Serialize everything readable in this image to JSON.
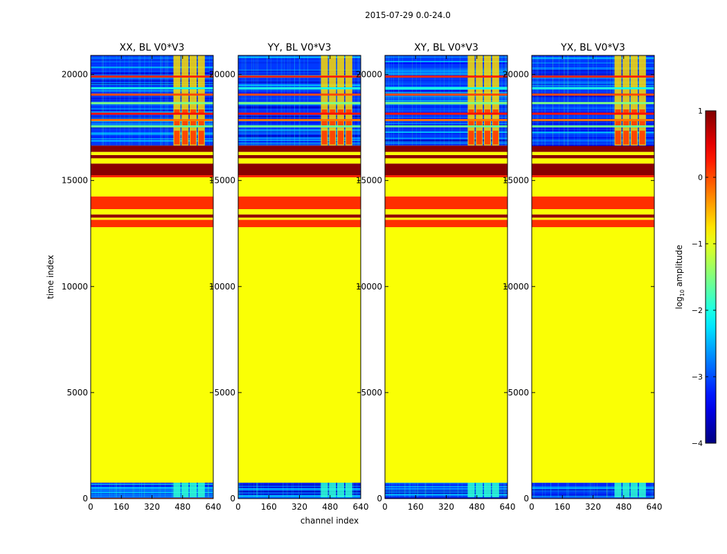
{
  "figure_title": "2015-07-29 0.0-24.0",
  "chart_data": {
    "type": "heatmap",
    "title": "2015-07-29 0.0-24.0",
    "xlabel": "channel index",
    "ylabel": "time index",
    "xlim": [
      0,
      640
    ],
    "ylim": [
      0,
      20900
    ],
    "x_ticks": [
      0,
      160,
      320,
      480,
      640
    ],
    "y_ticks": [
      0,
      5000,
      10000,
      15000,
      20000
    ],
    "panels": [
      {
        "title": "XX, BL V0*V3"
      },
      {
        "title": "YY, BL V0*V3"
      },
      {
        "title": "XY, BL V0*V3"
      },
      {
        "title": "YX, BL V0*V3"
      }
    ],
    "colorbar": {
      "label_prefix": "log",
      "label_sub": "10",
      "label_suffix": " amplitude",
      "range": [
        -4,
        1
      ],
      "ticks": [
        1,
        0,
        -1,
        -2,
        -3,
        -4
      ],
      "colormap": "jet"
    },
    "bands": [
      {
        "from": 0,
        "to": 60,
        "value": 0.0
      },
      {
        "from": 60,
        "to": 750,
        "value": -2.8
      },
      {
        "from": 750,
        "to": 12800,
        "value": -0.9
      },
      {
        "from": 12800,
        "to": 13150,
        "value": 0.15
      },
      {
        "from": 13150,
        "to": 13250,
        "value": -0.9
      },
      {
        "from": 13250,
        "to": 13400,
        "value": 0.9
      },
      {
        "from": 13400,
        "to": 13650,
        "value": -0.9
      },
      {
        "from": 13650,
        "to": 14250,
        "value": 0.15
      },
      {
        "from": 14250,
        "to": 15150,
        "value": -0.9
      },
      {
        "from": 15150,
        "to": 15250,
        "value": 0.2
      },
      {
        "from": 15250,
        "to": 15800,
        "value": 0.95
      },
      {
        "from": 15800,
        "to": 16050,
        "value": -0.9
      },
      {
        "from": 16050,
        "to": 16200,
        "value": 0.95
      },
      {
        "from": 16200,
        "to": 16350,
        "value": -0.9
      },
      {
        "from": 16350,
        "to": 16650,
        "value": 0.95
      },
      {
        "from": 16650,
        "to": 20900,
        "value": -3.1
      }
    ],
    "signal_channels": [
      430,
      600
    ],
    "signal_time_ranges": [
      [
        60,
        750
      ],
      [
        16650,
        20900
      ]
    ]
  }
}
